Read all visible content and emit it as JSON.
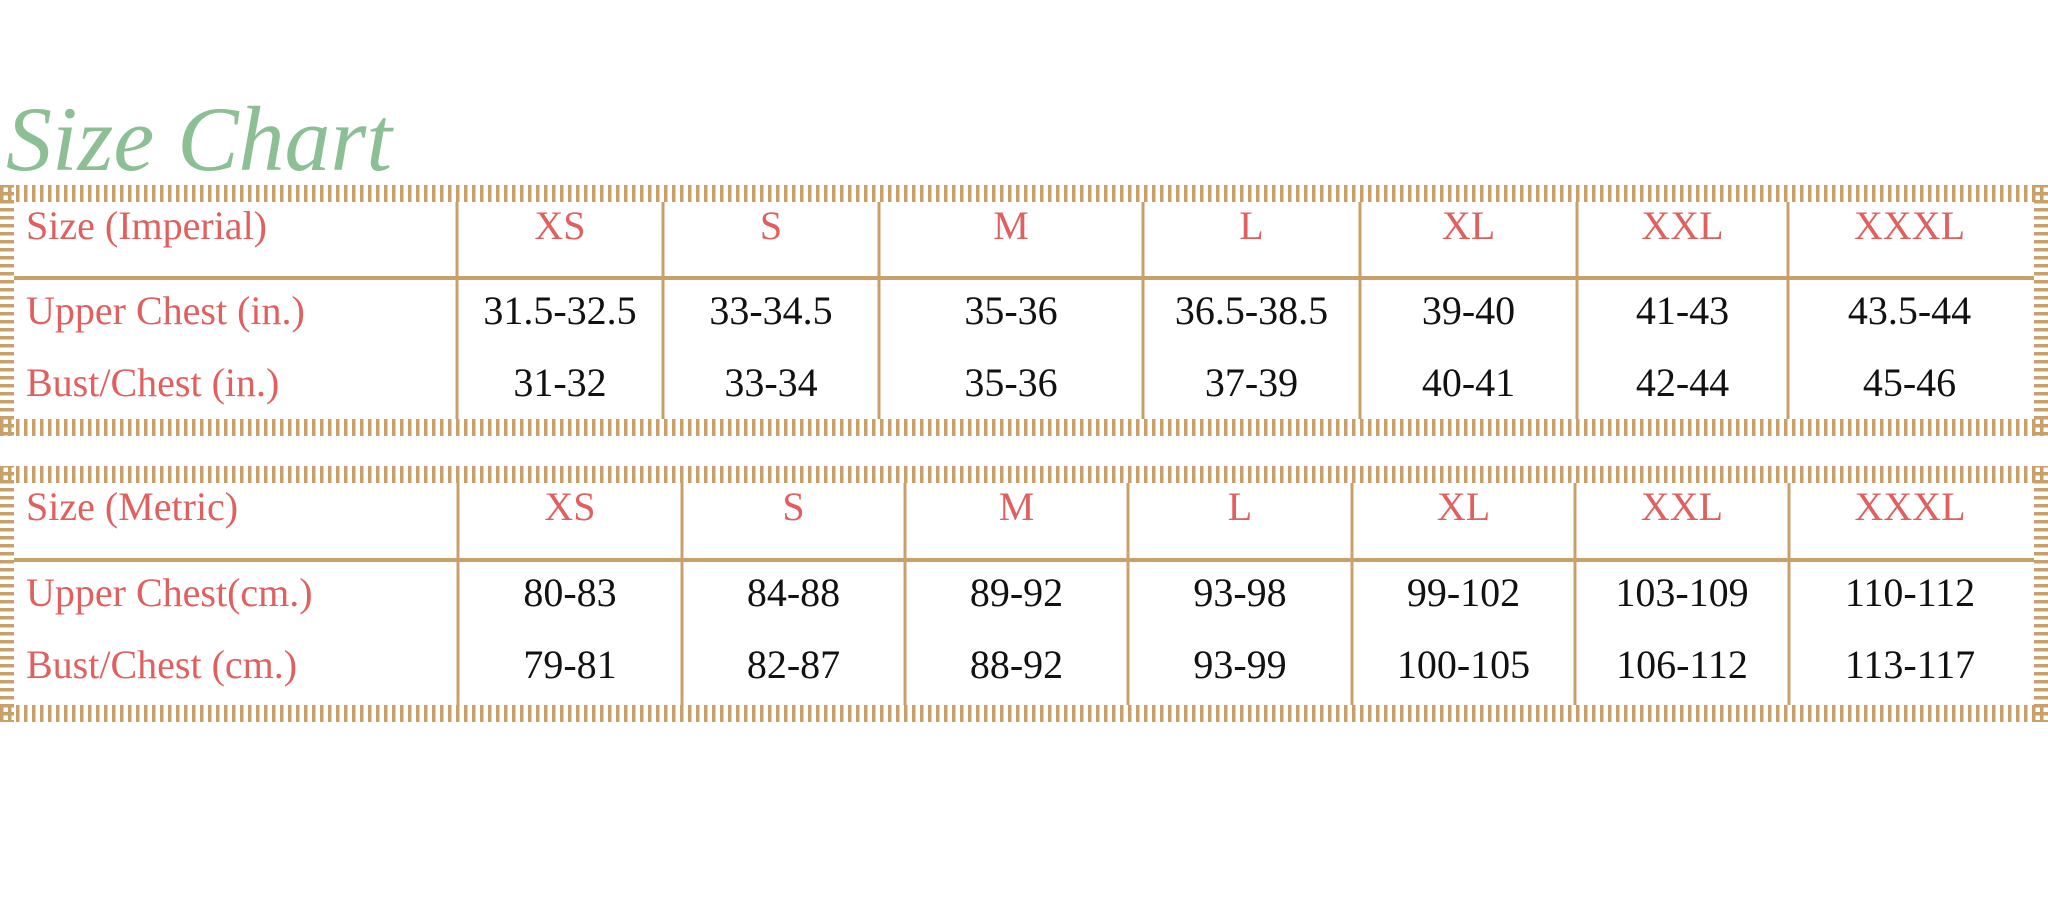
{
  "title": "Size Chart",
  "tables": [
    {
      "header": [
        "Size (Imperial)",
        "XS",
        "S",
        "M",
        "L",
        "XL",
        "XXL",
        "XXXL"
      ],
      "rows": [
        [
          "Upper Chest (in.)",
          "31.5-32.5",
          "33-34.5",
          "35-36",
          "36.5-38.5",
          "39-40",
          "41-43",
          "43.5-44"
        ],
        [
          "Bust/Chest (in.)",
          "31-32",
          "33-34",
          "35-36",
          "37-39",
          "40-41",
          "42-44",
          "45-46"
        ]
      ]
    },
    {
      "header": [
        "Size (Metric)",
        "XS",
        "S",
        "M",
        "L",
        "XL",
        "XXL",
        "XXXL"
      ],
      "rows": [
        [
          "Upper Chest(cm.)",
          "80-83",
          "84-88",
          "89-92",
          "93-98",
          "99-102",
          "103-109",
          "110-112"
        ],
        [
          "Bust/Chest (cm.)",
          "79-81",
          "82-87",
          "88-92",
          "93-99",
          "100-105",
          "106-112",
          "113-117"
        ]
      ]
    }
  ]
}
